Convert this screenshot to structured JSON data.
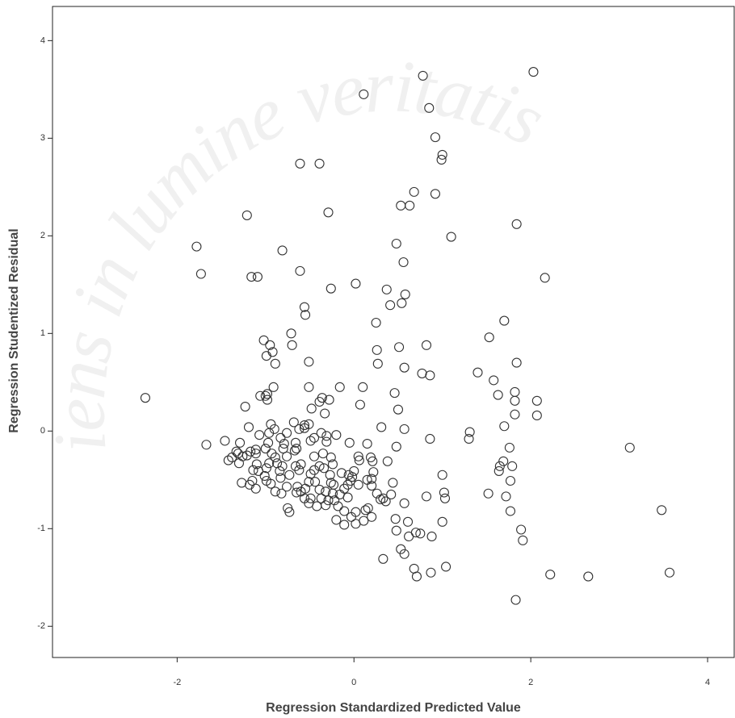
{
  "chart_data": {
    "type": "scatter",
    "watermark": "iens in lumine veritatis",
    "x_label": "Regression Standardized Predicted Value",
    "y_label": "Regression Studentized Residual",
    "xlim": [
      -3.41,
      4.31
    ],
    "ylim": [
      -2.32,
      4.35
    ],
    "xticks": [
      -2,
      0,
      2,
      4
    ],
    "yticks": [
      -2,
      -1,
      0,
      1,
      2,
      3,
      4
    ],
    "color": "#333333",
    "x": [
      -2.36,
      -1.78,
      -1.73,
      -1.67,
      -1.21,
      -1.16,
      -1.09,
      -0.61,
      -0.39,
      -0.29,
      -0.81,
      -0.61,
      -0.56,
      -0.55,
      -0.26,
      0.02,
      0.11,
      0.78,
      2.03,
      0.85,
      0.92,
      1.0,
      0.99,
      0.68,
      0.92,
      0.53,
      0.63,
      1.84,
      1.1,
      0.48,
      0.56,
      2.16,
      0.37,
      0.58,
      0.54,
      0.41,
      0.25,
      1.7,
      1.53,
      -0.71,
      -0.7,
      -1.02,
      -0.95,
      -0.92,
      -0.99,
      -0.89,
      -0.51,
      0.26,
      0.51,
      0.82,
      0.27,
      0.57,
      0.77,
      0.86,
      1.4,
      1.58,
      1.84,
      1.63,
      1.82,
      1.82,
      2.07,
      1.82,
      2.07,
      1.7,
      1.31,
      1.3,
      1.76,
      1.69,
      1.65,
      1.64,
      1.79,
      1.77,
      1.52,
      1.72,
      1.77,
      1.0,
      1.02,
      1.03,
      1.0,
      0.86,
      0.5,
      0.46,
      0.07,
      0.31,
      0.57,
      0.48,
      0.38,
      0.44,
      0.42,
      0.57,
      0.82,
      0.47,
      0.61,
      0.48,
      0.7,
      0.75,
      0.62,
      0.88,
      0.53,
      0.57,
      0.33,
      0.68,
      0.71,
      0.87,
      1.04,
      1.83,
      1.89,
      1.91,
      2.22,
      2.65,
      3.12,
      3.48,
      3.57,
      0.1,
      -0.16,
      -0.51,
      -0.91,
      -1.23,
      -1.06,
      -1.0,
      -0.98,
      -0.98,
      -1.19,
      -0.48,
      -0.39,
      -0.36,
      -0.28,
      -0.33,
      -0.51,
      -0.56,
      -0.68,
      -0.62,
      -0.76,
      -0.94,
      -0.9,
      -0.96,
      -1.07,
      -0.97,
      -0.83,
      -0.66,
      -0.49,
      -0.45,
      -0.31,
      -0.31,
      -0.2,
      -0.05,
      0.15,
      0.19,
      0.21,
      0.22,
      0.2,
      0.33,
      0.3,
      0.16,
      0.2,
      0.11,
      0.02,
      -0.03,
      0.02,
      0.13,
      0.05,
      -0.02,
      -0.04,
      -0.07,
      -0.11,
      -0.16,
      -0.22,
      -0.18,
      -0.11,
      -0.07,
      -0.23,
      -0.24,
      -0.29,
      -0.37,
      -0.32,
      -0.42,
      -0.49,
      -0.39,
      -0.32,
      -0.44,
      -0.26,
      -0.27,
      -0.34,
      -0.39,
      -0.45,
      -0.49,
      -0.51,
      -0.55,
      -0.6,
      -0.64,
      -0.65,
      -0.56,
      -0.51,
      -0.62,
      -0.6,
      -0.66,
      -0.81,
      -0.87,
      -0.84,
      -0.83,
      -0.76,
      -0.82,
      -0.89,
      -0.94,
      -0.99,
      -1.01,
      -1.08,
      -1.15,
      -1.18,
      -1.11,
      -1.27,
      -1.17,
      -1.11,
      -1.21,
      -1.26,
      -1.31,
      -1.38,
      -1.42,
      -1.3,
      -1.33,
      -1.46,
      -1.29,
      -1.11,
      -1.1,
      -0.99,
      -0.89,
      -0.93,
      -1.0,
      -0.96,
      -0.76,
      -0.73,
      -0.75,
      -0.73,
      -0.14,
      -0.06,
      0.0,
      0.06,
      0.05,
      0.15,
      0.36,
      0.26,
      -0.2,
      -0.11,
      0.2,
      -0.35,
      -0.26,
      -0.24,
      -0.45,
      -0.37,
      -0.65,
      -0.8,
      -0.79,
      -0.67,
      -0.56,
      -1.14
    ],
    "values": [
      0.34,
      1.89,
      1.61,
      -0.14,
      2.21,
      1.58,
      1.58,
      2.74,
      2.74,
      2.24,
      1.85,
      1.64,
      1.27,
      1.19,
      1.46,
      1.51,
      3.45,
      3.64,
      3.68,
      3.31,
      3.01,
      2.83,
      2.78,
      2.45,
      2.43,
      2.31,
      2.31,
      2.12,
      1.99,
      1.92,
      1.73,
      1.57,
      1.45,
      1.4,
      1.31,
      1.29,
      1.11,
      1.13,
      0.96,
      1.0,
      0.88,
      0.93,
      0.88,
      0.81,
      0.77,
      0.69,
      0.71,
      0.83,
      0.86,
      0.88,
      0.69,
      0.65,
      0.59,
      0.57,
      0.6,
      0.52,
      0.7,
      0.37,
      0.4,
      0.31,
      0.31,
      0.17,
      0.16,
      0.05,
      -0.01,
      -0.08,
      -0.17,
      -0.31,
      -0.36,
      -0.41,
      -0.36,
      -0.51,
      -0.64,
      -0.67,
      -0.82,
      -0.45,
      -0.63,
      -0.69,
      -0.93,
      -0.08,
      0.22,
      0.39,
      0.27,
      0.04,
      0.02,
      -0.16,
      -0.31,
      -0.53,
      -0.65,
      -0.74,
      -0.67,
      -0.9,
      -0.93,
      -1.02,
      -1.04,
      -1.05,
      -1.08,
      -1.08,
      -1.21,
      -1.26,
      -1.31,
      -1.41,
      -1.49,
      -1.45,
      -1.39,
      -1.73,
      -1.01,
      -1.12,
      -1.47,
      -1.49,
      -0.17,
      -0.81,
      -1.45,
      0.45,
      0.45,
      0.45,
      0.45,
      0.25,
      0.36,
      0.36,
      0.38,
      0.32,
      0.04,
      0.23,
      0.3,
      0.34,
      0.32,
      0.18,
      0.07,
      0.06,
      0.09,
      0.02,
      -0.02,
      0.07,
      0.02,
      -0.02,
      -0.04,
      -0.12,
      -0.07,
      -0.12,
      -0.1,
      -0.07,
      -0.05,
      -0.11,
      -0.04,
      -0.12,
      -0.13,
      -0.27,
      -0.31,
      -0.42,
      -0.56,
      -0.69,
      -0.7,
      -0.79,
      -0.88,
      -0.92,
      -0.95,
      -0.88,
      -0.83,
      -0.81,
      -0.55,
      -0.47,
      -0.51,
      -0.55,
      -0.59,
      -0.65,
      -0.71,
      -0.77,
      -0.82,
      -0.68,
      -0.55,
      -0.64,
      -0.71,
      -0.69,
      -0.76,
      -0.77,
      -0.69,
      -0.6,
      -0.62,
      -0.52,
      -0.53,
      -0.45,
      -0.38,
      -0.36,
      -0.4,
      -0.44,
      -0.52,
      -0.59,
      -0.62,
      -0.57,
      -0.63,
      -0.69,
      -0.74,
      -0.4,
      -0.34,
      -0.36,
      -0.36,
      -0.33,
      -0.41,
      -0.48,
      -0.57,
      -0.64,
      -0.62,
      -0.54,
      -0.51,
      -0.46,
      -0.41,
      -0.51,
      -0.55,
      -0.59,
      -0.53,
      -0.21,
      -0.23,
      -0.25,
      -0.26,
      -0.23,
      -0.27,
      -0.3,
      -0.33,
      -0.21,
      -0.1,
      -0.12,
      -0.19,
      -0.34,
      -0.38,
      -0.27,
      -0.23,
      -0.18,
      -0.33,
      -0.26,
      -0.45,
      -0.79,
      -0.83,
      -0.43,
      -0.45,
      -0.41,
      -0.3,
      -0.26,
      -0.5,
      -0.72,
      -0.64,
      -0.91,
      -0.96,
      -0.49,
      -0.23,
      -0.27,
      -0.34,
      -0.26,
      -0.02,
      -0.18,
      -0.18,
      -0.13,
      -0.2,
      0.03,
      -0.4
    ]
  }
}
